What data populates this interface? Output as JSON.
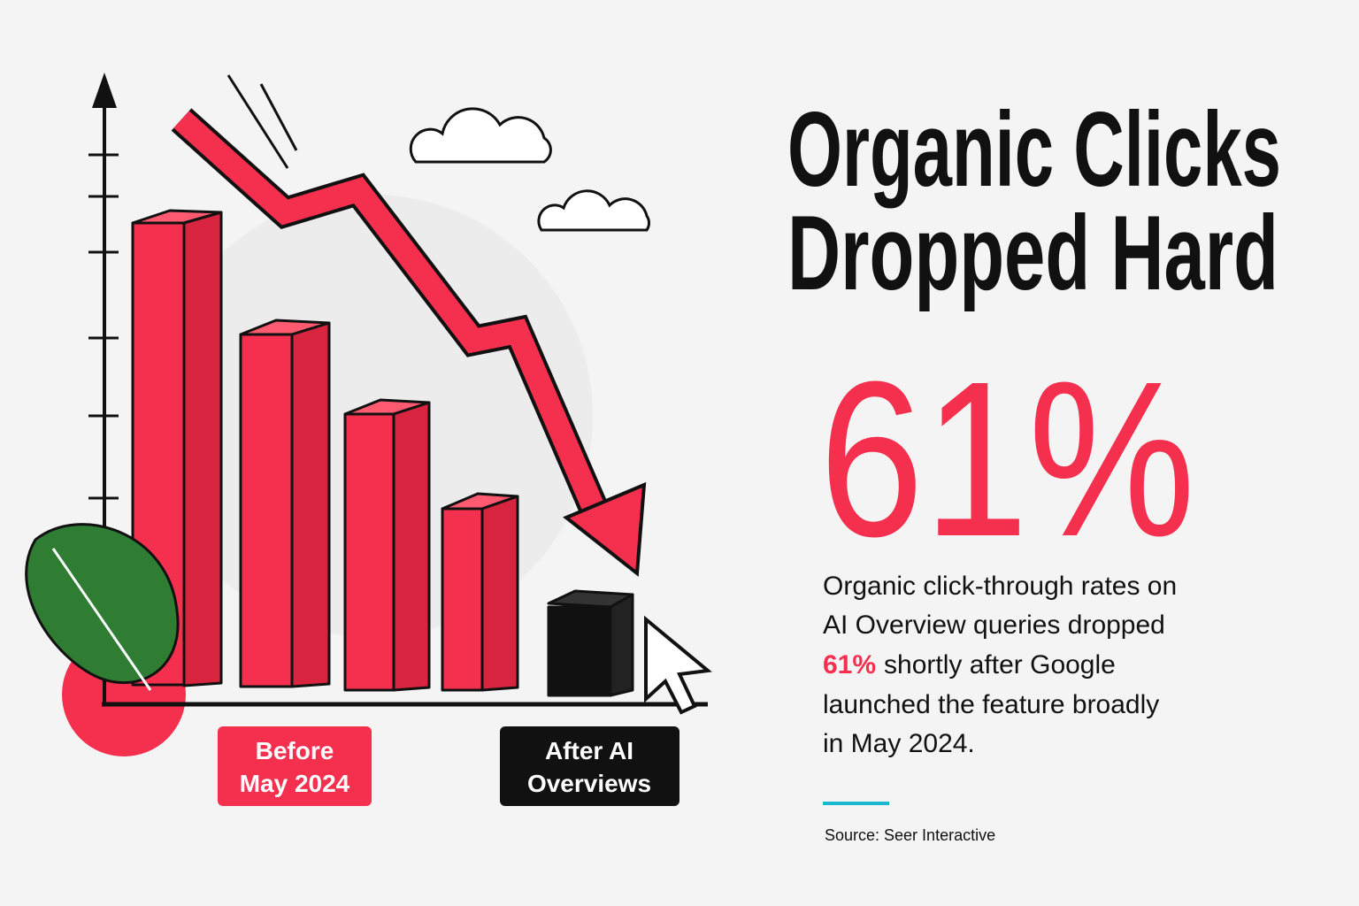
{
  "header": {
    "title_lines": [
      "Organic Clicks",
      "Dropped Hard"
    ]
  },
  "stat": {
    "value": "61%"
  },
  "body": {
    "lines": [
      "Organic click-through rates on",
      "AI Overview queries dropped",
      {
        "highlight": "61%",
        "text": "shortly after Google"
      },
      "launched the feature broadly",
      "in May 2024."
    ]
  },
  "labels": {
    "before": [
      "Before",
      "May 2024"
    ],
    "after": [
      "After AI",
      "Overviews"
    ]
  },
  "source": "Source: Seer Interactive"
}
